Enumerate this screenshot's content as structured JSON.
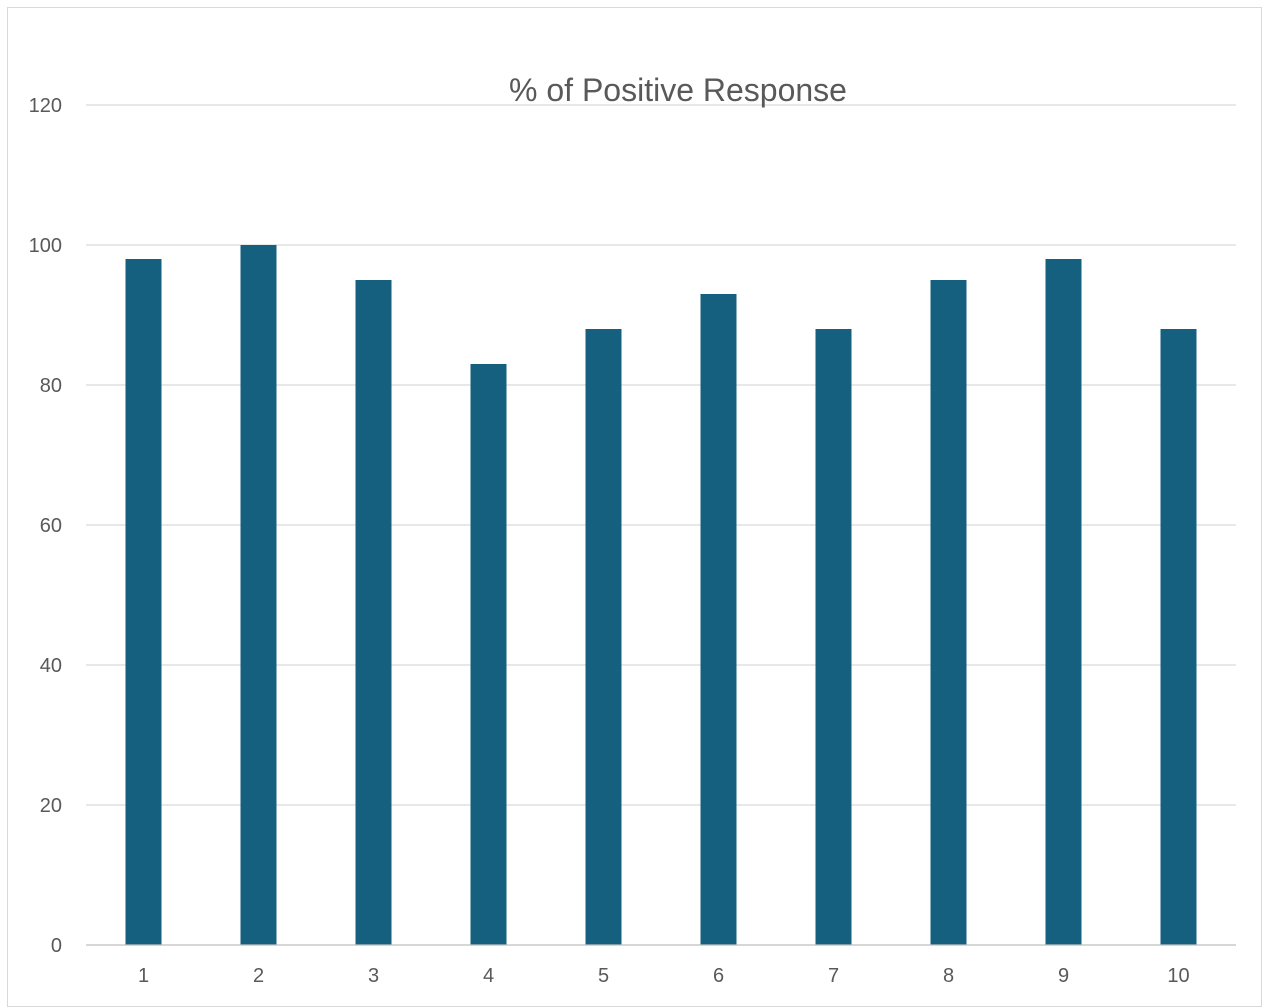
{
  "chart_data": {
    "type": "bar",
    "title": "% of Positive Response",
    "xlabel": "",
    "ylabel": "",
    "categories": [
      "1",
      "2",
      "3",
      "4",
      "5",
      "6",
      "7",
      "8",
      "9",
      "10"
    ],
    "values": [
      98,
      100,
      95,
      83,
      88,
      93,
      88,
      95,
      98,
      88
    ],
    "ylim": [
      0,
      120
    ],
    "yticks": [
      "0",
      "20",
      "40",
      "60",
      "80",
      "100",
      "120"
    ],
    "grid": true,
    "legend": "none",
    "bar_color": "#16607f"
  }
}
